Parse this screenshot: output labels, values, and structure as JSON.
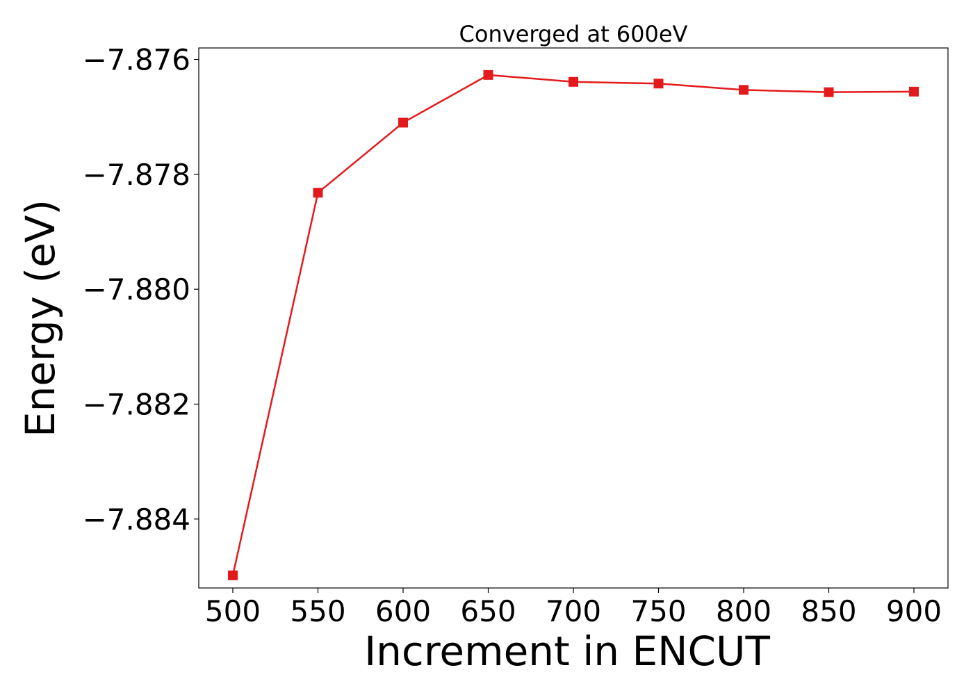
{
  "chart_data": {
    "type": "line",
    "title": "Converged at 600eV",
    "xlabel": "Increment in ENCUT",
    "ylabel": "Energy (eV)",
    "x": [
      500,
      550,
      600,
      650,
      700,
      750,
      800,
      850,
      900
    ],
    "series": [
      {
        "values": [
          -7.88498,
          -7.87832,
          -7.8771,
          -7.87627,
          -7.87639,
          -7.87642,
          -7.87653,
          -7.87657,
          -7.87656
        ],
        "color": "#e31a1c",
        "marker": "square"
      }
    ],
    "xticks": [
      500,
      550,
      600,
      650,
      700,
      750,
      800,
      850,
      900
    ],
    "xtick_labels": [
      "500",
      "550",
      "600",
      "650",
      "700",
      "750",
      "800",
      "850",
      "900"
    ],
    "yticks": [
      -7.876,
      -7.878,
      -7.88,
      -7.882,
      -7.884
    ],
    "ytick_labels": [
      "−7.876",
      "−7.878",
      "−7.880",
      "−7.882",
      "−7.884"
    ],
    "xlim": [
      480,
      920
    ],
    "ylim": [
      -7.8852,
      -7.8758
    ],
    "grid": false,
    "legend": false
  }
}
